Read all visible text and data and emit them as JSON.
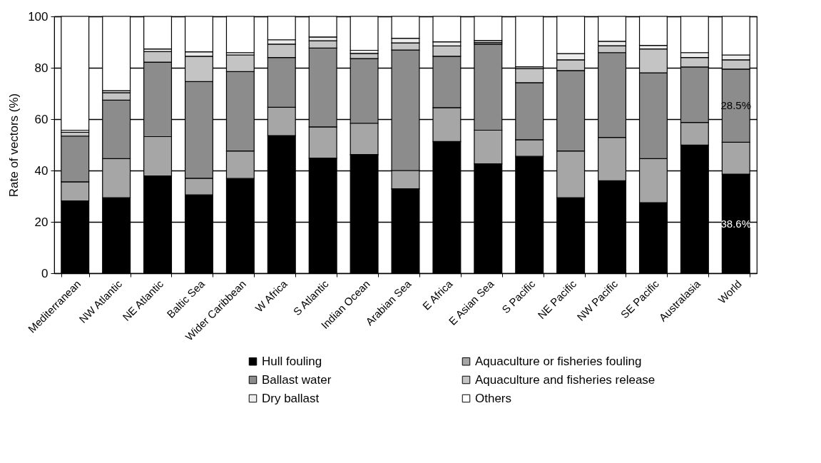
{
  "chart_data": {
    "type": "bar",
    "stacked": true,
    "ylabel": "Rate of vectors (%)",
    "ylim": [
      0,
      100
    ],
    "yticks": [
      0,
      20,
      40,
      60,
      80,
      100
    ],
    "grid": "y",
    "legend": "bottom",
    "categories": [
      "Mediterranean",
      "NW Atlantic",
      "NE Atlantic",
      "Baltic Sea",
      "Wider Caribbean",
      "W Africa",
      "S Atlantic",
      "Indian Ocean",
      "Arabian Sea",
      "E Africa",
      "E Asian Sea",
      "S Pacific",
      "NE Pacific",
      "NW Pacific",
      "SE Pacific",
      "Australasia",
      "World"
    ],
    "series": [
      {
        "name": "Hull fouling",
        "color": "#000000",
        "values": [
          28.2,
          29.4,
          37.9,
          30.5,
          36.9,
          53.6,
          44.8,
          46.2,
          32.9,
          51.3,
          42.6,
          45.5,
          29.4,
          36.0,
          27.5,
          49.9,
          38.6
        ],
        "value_labels": [
          null,
          null,
          null,
          null,
          null,
          null,
          null,
          null,
          null,
          null,
          null,
          null,
          null,
          null,
          null,
          null,
          "38.6%"
        ]
      },
      {
        "name": "Aquaculture or fisheries fouling",
        "color": "#a6a6a6",
        "values": [
          7.4,
          15.2,
          15.3,
          6.5,
          10.7,
          11.0,
          12.2,
          12.2,
          7.1,
          13.2,
          13.1,
          6.5,
          18.2,
          16.9,
          17.1,
          8.8,
          12.4
        ]
      },
      {
        "name": "Ballast water",
        "color": "#8c8c8c",
        "values": [
          17.8,
          22.8,
          29.0,
          37.6,
          30.9,
          19.4,
          30.7,
          25.2,
          46.9,
          20.0,
          33.5,
          22.2,
          31.3,
          33.0,
          33.4,
          21.6,
          28.5
        ],
        "value_labels": [
          null,
          null,
          null,
          null,
          null,
          null,
          null,
          null,
          null,
          null,
          null,
          null,
          null,
          null,
          null,
          null,
          "28.5%"
        ]
      },
      {
        "name": "Aquaculture and fisheries release",
        "color": "#c4c4c4",
        "values": [
          1.5,
          2.9,
          4.1,
          9.9,
          6.5,
          5.2,
          2.8,
          2.0,
          2.8,
          4.0,
          0.6,
          5.5,
          4.2,
          2.7,
          9.3,
          3.7,
          3.6
        ]
      },
      {
        "name": "Dry ballast",
        "color": "#ececec",
        "values": [
          0.8,
          0.8,
          1.0,
          1.7,
          0.9,
          1.7,
          1.5,
          1.2,
          1.8,
          1.6,
          0.8,
          0.7,
          2.4,
          1.7,
          1.4,
          1.9,
          1.9
        ]
      },
      {
        "name": "Others",
        "color": "#ffffff",
        "values": [
          44.3,
          28.9,
          12.7,
          13.8,
          14.1,
          9.1,
          8.0,
          13.2,
          8.5,
          9.9,
          9.4,
          19.6,
          14.5,
          9.7,
          11.3,
          14.1,
          15.0
        ]
      }
    ]
  }
}
